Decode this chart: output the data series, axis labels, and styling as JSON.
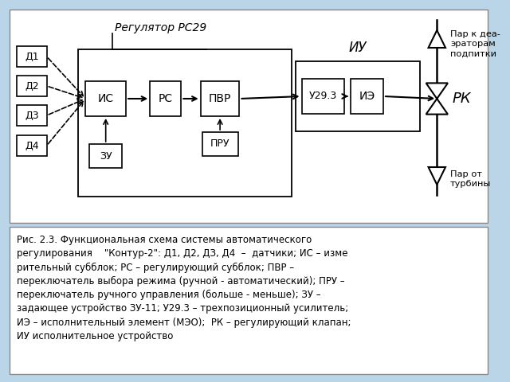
{
  "bg_color": "#bad4e8",
  "diagram_bg": "#ffffff",
  "caption_bg": "#ffffff",
  "sensors": [
    "Д1",
    "Д2",
    "Д3",
    "Д4"
  ],
  "block_is": "ИС",
  "block_rs": "РС",
  "block_pvr": "ПВР",
  "block_pru": "ПРУ",
  "block_zu": "ЗУ",
  "block_u293": "У29.3",
  "block_ie": "ИЭ",
  "reg_title": "Регулятор РС29",
  "iu_label": "ИУ",
  "rk_label": "РК",
  "par_top": "Пар к деа-\nэраторам\nподпитки",
  "par_bottom": "Пар от\nтурбины",
  "caption": "Рис. 2.3. Функциональная схема системы автоматического\nрегулирования    \"Контур-2\": Д1, Д2, ДЗ, Д4  –  датчики; ИС – изме\nрительный субблок; РС – регулирующий субблок; ПВР –\nпереключатель выбора режима (ручной - автоматический); ПРУ –\nпереключатель ручного управления (больше - меньше); ЗУ –\nзадающее устройство ЗУ-11; У29.3 – трехпозиционный усилитель;\nИЭ – исполнительный элемент (МЭО);  РК – регулирующий клапан;\nИУ исполнительное устройство"
}
